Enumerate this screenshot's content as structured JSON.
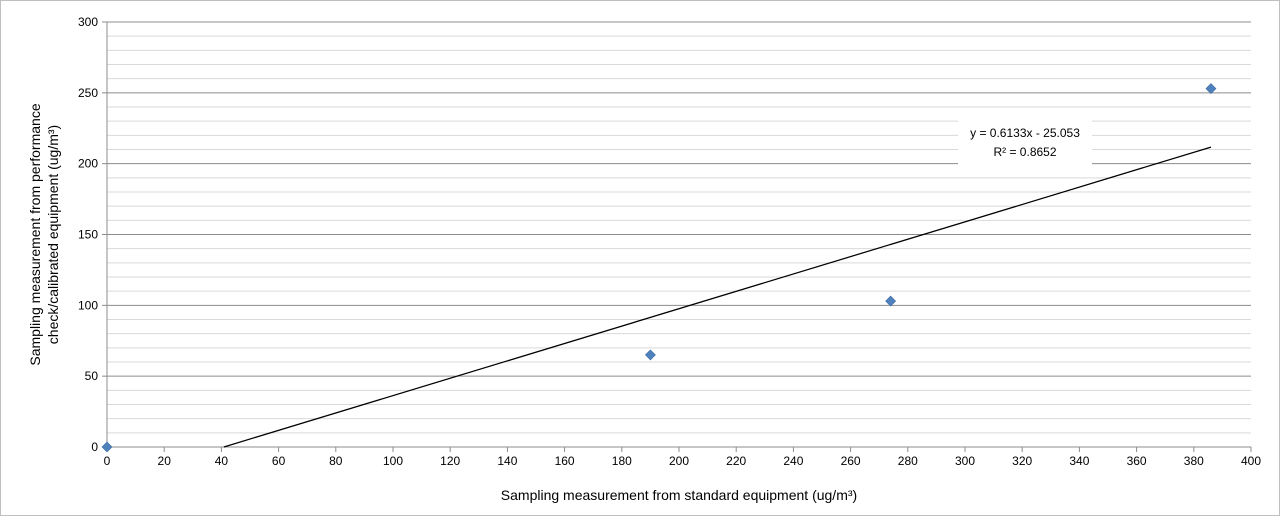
{
  "chart_data": {
    "type": "scatter",
    "title": "",
    "xlabel": "Sampling measurement from standard equipment  (ug/m³)",
    "ylabel_lines": [
      "Sampling measurement from performance",
      "check/calibrated equipment (ug/m³)"
    ],
    "xlim": [
      0,
      400
    ],
    "ylim": [
      0,
      300
    ],
    "x_ticks": [
      "0",
      "20",
      "40",
      "60",
      "80",
      "100",
      "120",
      "140",
      "160",
      "180",
      "200",
      "220",
      "240",
      "260",
      "280",
      "300",
      "320",
      "340",
      "360",
      "380",
      "400"
    ],
    "y_ticks": [
      "0",
      "50",
      "100",
      "150",
      "200",
      "250",
      "300"
    ],
    "grid": true,
    "legend": "none",
    "series": [
      {
        "x": [
          0,
          190,
          274,
          386
        ],
        "y": [
          0,
          65,
          103,
          253
        ],
        "marker": "diamond",
        "color": "#4f81bd"
      }
    ],
    "trendline": {
      "type": "linear",
      "slope": 0.6133,
      "intercept": -25.053,
      "x_range": [
        40.85,
        386
      ],
      "color": "#000000"
    },
    "annotations": {
      "equation": "y = 0.6133x - 25.053",
      "r_squared": "R² = 0.8652"
    }
  }
}
